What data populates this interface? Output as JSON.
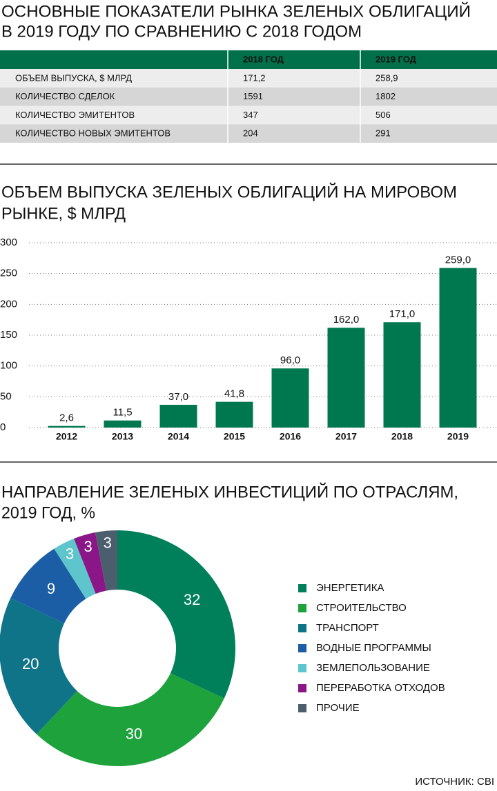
{
  "table": {
    "title": [
      "ОСНОВНЫЕ ПОКАЗАТЕЛИ РЫНКА ЗЕЛЕНЫХ ОБЛИГАЦИЙ",
      "В 2019 ГОДУ ПО СРАВНЕНИЮ С 2018 ГОДОМ"
    ],
    "columns": [
      "2018 ГОД",
      "2019 ГОД"
    ],
    "rows": [
      [
        "ОБЪЕМ ВЫПУСКА, $ МЛРД",
        "171,2",
        "258,9"
      ],
      [
        "КОЛИЧЕСТВО СДЕЛОК",
        "1591",
        "1802"
      ],
      [
        "КОЛИЧЕСТВО ЭМИТЕНТОВ",
        "347",
        "506"
      ],
      [
        "КОЛИЧЕСТВО НОВЫХ ЭМИТЕНТОВ",
        "204",
        "291"
      ]
    ]
  },
  "chart_data": [
    {
      "type": "bar",
      "title": [
        "ОБЪЕМ ВЫПУСКА ЗЕЛЕНЫХ ОБЛИГАЦИЙ НА МИРОВОМ",
        "РЫНКЕ, $ МЛРД"
      ],
      "categories": [
        "2012",
        "2013",
        "2014",
        "2015",
        "2016",
        "2017",
        "2018",
        "2019"
      ],
      "values": [
        2.6,
        11.5,
        37.0,
        41.8,
        96.0,
        162.0,
        171.0,
        259.0
      ],
      "value_labels": [
        "2,6",
        "11,5",
        "37,0",
        "41,8",
        "96,0",
        "162,0",
        "171,0",
        "259,0"
      ],
      "color": "#00784f",
      "ylim": [
        0,
        300
      ],
      "yticks": [
        0,
        50,
        100,
        150,
        200,
        250,
        300
      ],
      "grid": true
    },
    {
      "type": "pie",
      "title": [
        "НАПРАВЛЕНИЕ ЗЕЛЕНЫХ ИНВЕСТИЦИЙ ПО ОТРАСЛЯМ,",
        "2019 ГОД, %"
      ],
      "categories": [
        "ЭНЕРГЕТИКА",
        "СТРОИТЕЛЬСТВО",
        "ТРАНСПОРТ",
        "ВОДНЫЕ ПРОГРАММЫ",
        "ЗЕМЛЕПОЛЬЗОВАНИЕ",
        "ПЕРЕРАБОТКА ОТХОДОВ",
        "ПРОЧИЕ"
      ],
      "values": [
        32,
        30,
        20,
        9,
        3,
        3,
        3
      ],
      "colors": [
        "#00805a",
        "#1ea33c",
        "#0f7488",
        "#1b5ea6",
        "#5ec5cc",
        "#8a1687",
        "#4a5e6d"
      ]
    }
  ],
  "source": "ИСТОЧНИК: CBI"
}
